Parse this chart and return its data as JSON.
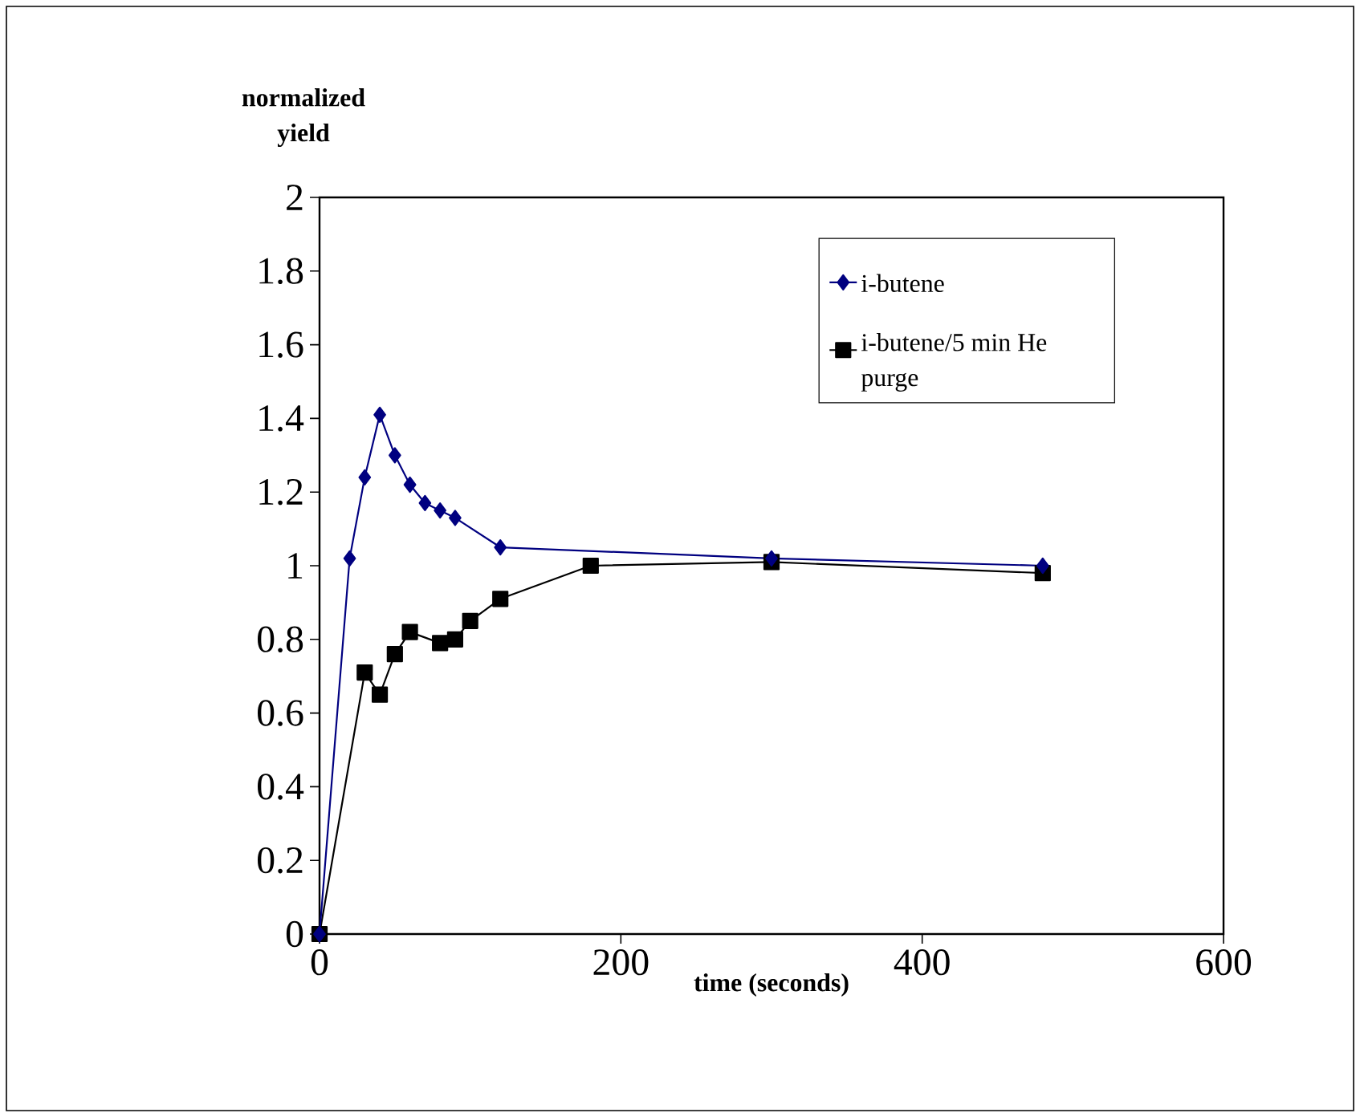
{
  "chart_data": {
    "type": "line",
    "xlabel": "time (seconds)",
    "ylabel": "normalized yield",
    "xlim": [
      0,
      600
    ],
    "xticks": [
      0,
      200,
      400,
      600
    ],
    "ylim": [
      0,
      2
    ],
    "yticks": [
      0,
      0.2,
      0.4,
      0.6,
      0.8,
      1,
      1.2,
      1.4,
      1.6,
      1.8,
      2
    ],
    "legend": "top right",
    "line_style": "solid",
    "series": [
      {
        "name": "i-butene",
        "color": "#000080",
        "marker": "diamond",
        "x": [
          0,
          20,
          30,
          40,
          50,
          60,
          70,
          80,
          90,
          120,
          300,
          480
        ],
        "values": [
          0,
          1.02,
          1.24,
          1.41,
          1.3,
          1.22,
          1.17,
          1.15,
          1.13,
          1.05,
          1.02,
          1.0
        ]
      },
      {
        "name": "i-butene/5 min He purge",
        "color": "#000000",
        "marker": "square",
        "x": [
          0,
          30,
          40,
          50,
          60,
          80,
          90,
          100,
          120,
          180,
          300,
          480
        ],
        "values": [
          0,
          0.71,
          0.65,
          0.76,
          0.82,
          0.79,
          0.8,
          0.85,
          0.91,
          1.0,
          1.01,
          0.98
        ]
      }
    ]
  }
}
